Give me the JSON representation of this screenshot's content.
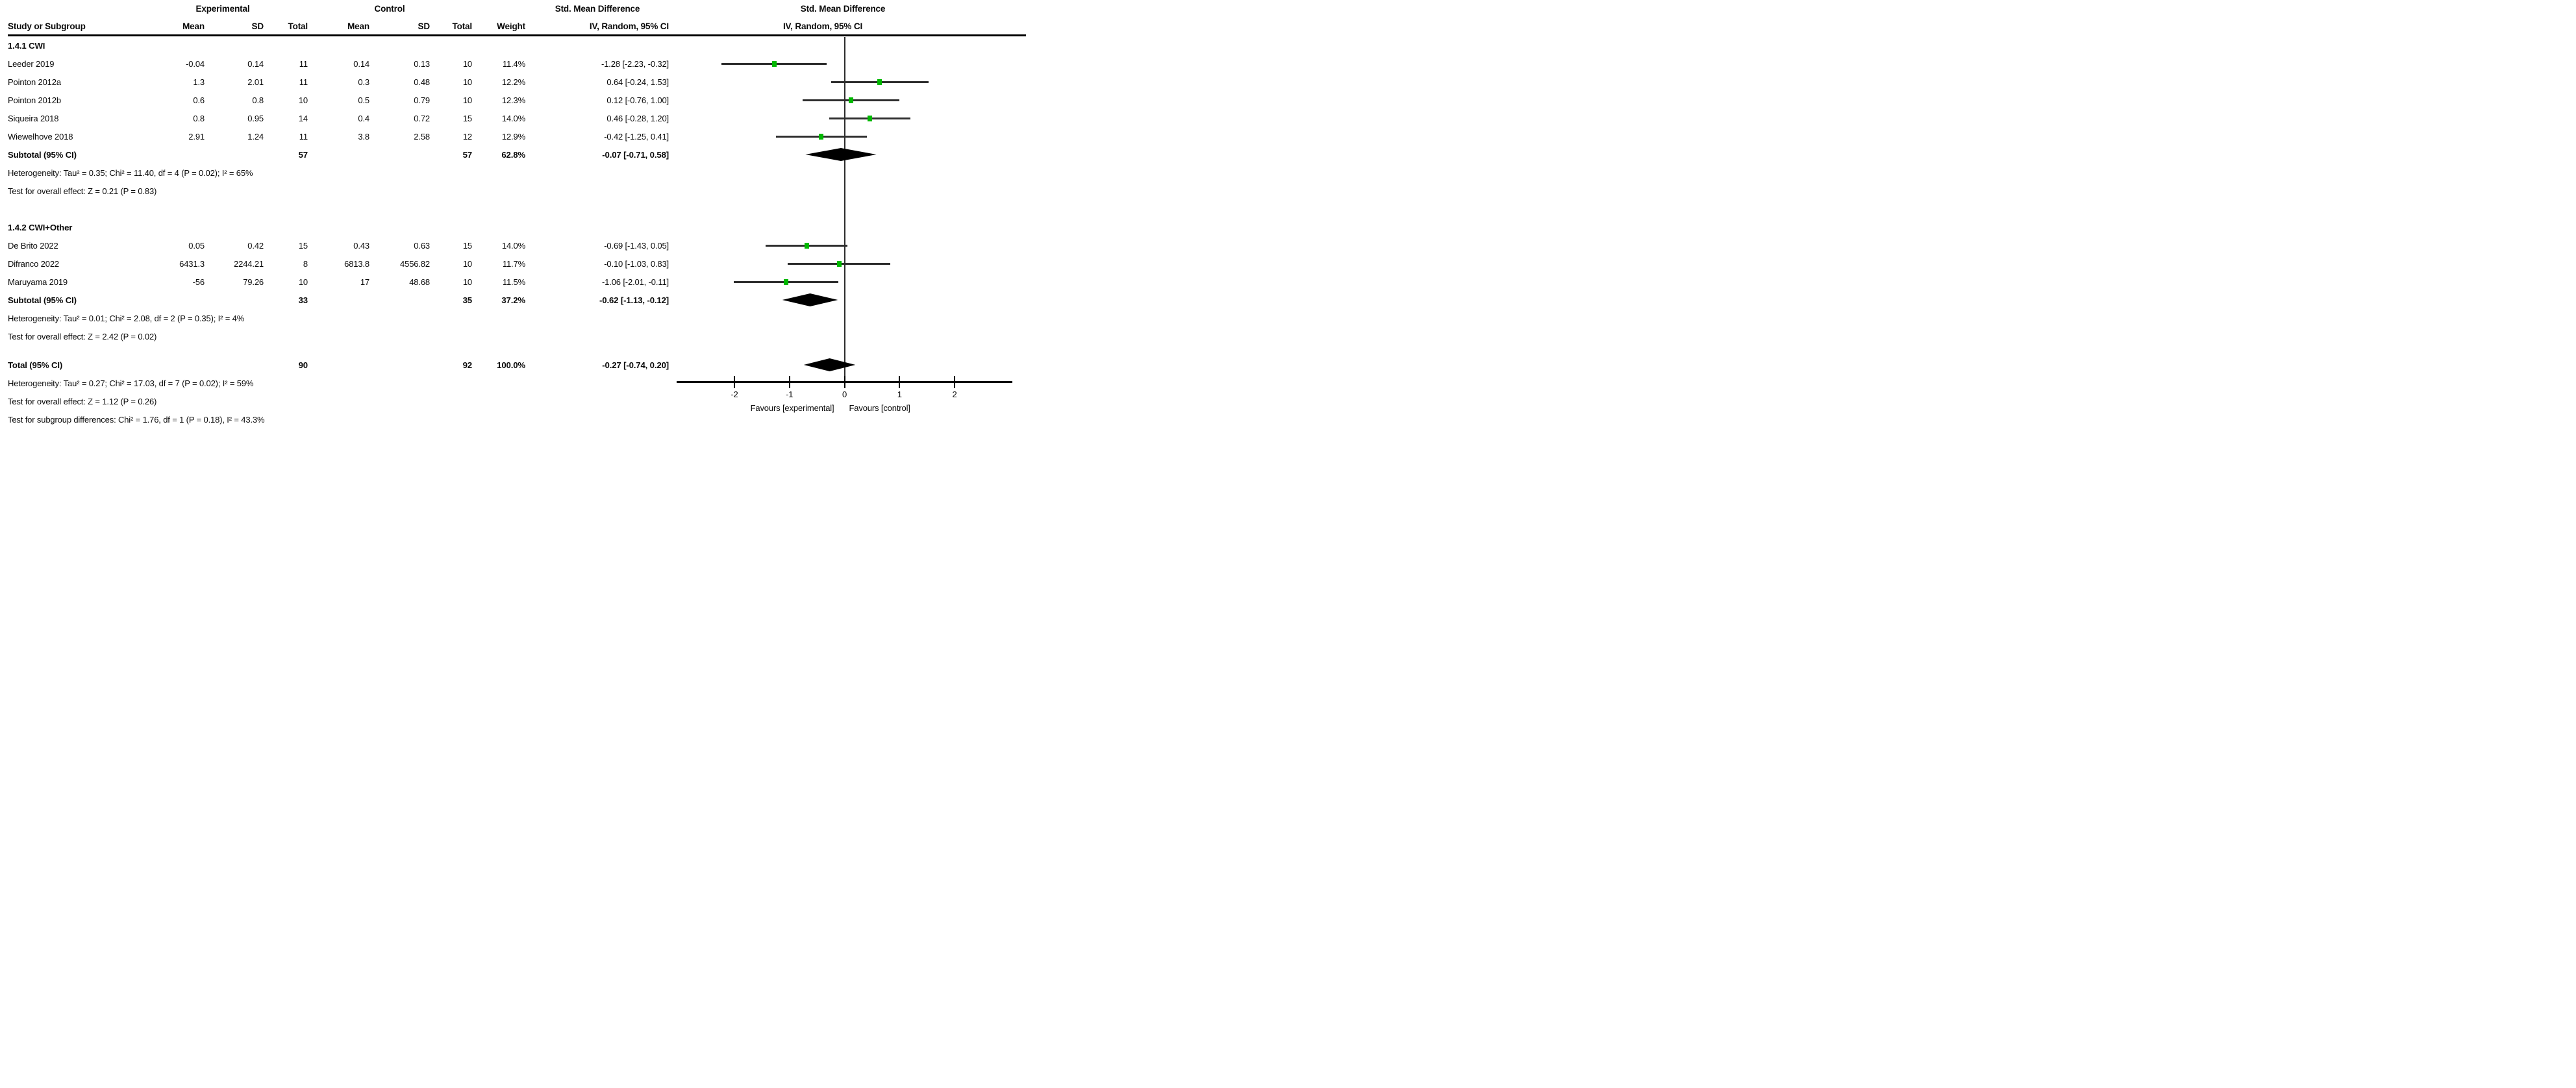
{
  "header": {
    "experimental": "Experimental",
    "control": "Control",
    "smd": "Std. Mean Difference",
    "iv": "IV, Random, 95% CI",
    "study_or_subgroup": "Study or Subgroup",
    "mean": "Mean",
    "sd": "SD",
    "total": "Total",
    "weight": "Weight"
  },
  "colors": {
    "square": "#00b800",
    "ci_line": "#2e2e2e",
    "diamond": "#000000",
    "axis": "#000000",
    "zero_line": "#2b2b2b"
  },
  "chart_data": {
    "type": "forest",
    "effect_measure": "Std. Mean Difference",
    "model": "IV, Random, 95% CI",
    "axis": {
      "min": -3.05,
      "max": 3.05,
      "ticks": [
        -2,
        -1,
        0,
        1,
        2
      ],
      "tick_labels": [
        "-2",
        "-1",
        "0",
        "1",
        "2"
      ]
    },
    "favours_left": "Favours [experimental]",
    "favours_right": "Favours [control]",
    "subgroups": [
      {
        "label": "1.4.1 CWI",
        "studies": [
          {
            "name": "Leeder 2019",
            "mean_e": "-0.04",
            "sd_e": "0.14",
            "n_e": "11",
            "mean_c": "0.14",
            "sd_c": "0.13",
            "n_c": "10",
            "weight": "11.4%",
            "ci_text": "-1.28 [-2.23, -0.32]",
            "est": -1.28,
            "lo": -2.23,
            "hi": -0.32
          },
          {
            "name": "Pointon 2012a",
            "mean_e": "1.3",
            "sd_e": "2.01",
            "n_e": "11",
            "mean_c": "0.3",
            "sd_c": "0.48",
            "n_c": "10",
            "weight": "12.2%",
            "ci_text": "0.64 [-0.24, 1.53]",
            "est": 0.64,
            "lo": -0.24,
            "hi": 1.53
          },
          {
            "name": "Pointon 2012b",
            "mean_e": "0.6",
            "sd_e": "0.8",
            "n_e": "10",
            "mean_c": "0.5",
            "sd_c": "0.79",
            "n_c": "10",
            "weight": "12.3%",
            "ci_text": "0.12 [-0.76, 1.00]",
            "est": 0.12,
            "lo": -0.76,
            "hi": 1.0
          },
          {
            "name": "Siqueira 2018",
            "mean_e": "0.8",
            "sd_e": "0.95",
            "n_e": "14",
            "mean_c": "0.4",
            "sd_c": "0.72",
            "n_c": "15",
            "weight": "14.0%",
            "ci_text": "0.46 [-0.28, 1.20]",
            "est": 0.46,
            "lo": -0.28,
            "hi": 1.2
          },
          {
            "name": "Wiewelhove 2018",
            "mean_e": "2.91",
            "sd_e": "1.24",
            "n_e": "11",
            "mean_c": "3.8",
            "sd_c": "2.58",
            "n_c": "12",
            "weight": "12.9%",
            "ci_text": "-0.42 [-1.25, 0.41]",
            "est": -0.42,
            "lo": -1.25,
            "hi": 0.41
          }
        ],
        "subtotal": {
          "label": "Subtotal (95% CI)",
          "n_e": "57",
          "n_c": "57",
          "weight": "62.8%",
          "ci_text": "-0.07 [-0.71, 0.58]",
          "est": -0.07,
          "lo": -0.71,
          "hi": 0.58
        },
        "heterogeneity": "Heterogeneity: Tau² = 0.35; Chi² = 11.40, df = 4 (P = 0.02); I² = 65%",
        "overall_effect": "Test for overall effect: Z = 0.21 (P = 0.83)"
      },
      {
        "label": "1.4.2 CWI+Other",
        "studies": [
          {
            "name": "De Brito 2022",
            "mean_e": "0.05",
            "sd_e": "0.42",
            "n_e": "15",
            "mean_c": "0.43",
            "sd_c": "0.63",
            "n_c": "15",
            "weight": "14.0%",
            "ci_text": "-0.69 [-1.43, 0.05]",
            "est": -0.69,
            "lo": -1.43,
            "hi": 0.05
          },
          {
            "name": "Difranco 2022",
            "mean_e": "6431.3",
            "sd_e": "2244.21",
            "n_e": "8",
            "mean_c": "6813.8",
            "sd_c": "4556.82",
            "n_c": "10",
            "weight": "11.7%",
            "ci_text": "-0.10 [-1.03, 0.83]",
            "est": -0.1,
            "lo": -1.03,
            "hi": 0.83
          },
          {
            "name": "Maruyama 2019",
            "mean_e": "-56",
            "sd_e": "79.26",
            "n_e": "10",
            "mean_c": "17",
            "sd_c": "48.68",
            "n_c": "10",
            "weight": "11.5%",
            "ci_text": "-1.06 [-2.01, -0.11]",
            "est": -1.06,
            "lo": -2.01,
            "hi": -0.11
          }
        ],
        "subtotal": {
          "label": "Subtotal (95% CI)",
          "n_e": "33",
          "n_c": "35",
          "weight": "37.2%",
          "ci_text": "-0.62 [-1.13, -0.12]",
          "est": -0.62,
          "lo": -1.13,
          "hi": -0.12
        },
        "heterogeneity": "Heterogeneity: Tau² = 0.01; Chi² = 2.08, df = 2 (P = 0.35); I² = 4%",
        "overall_effect": "Test for overall effect: Z = 2.42 (P = 0.02)"
      }
    ],
    "total": {
      "label": "Total (95% CI)",
      "n_e": "90",
      "n_c": "92",
      "weight": "100.0%",
      "ci_text": "-0.27 [-0.74, 0.20]",
      "est": -0.27,
      "lo": -0.74,
      "hi": 0.2
    },
    "total_heterogeneity": "Heterogeneity: Tau² = 0.27; Chi² = 17.03, df = 7 (P = 0.02); I² = 59%",
    "total_overall": "Test for overall effect: Z = 1.12 (P = 0.26)",
    "subgroup_diff": "Test for subgroup differences: Chi² = 1.76, df = 1 (P = 0.18), I² = 43.3%"
  }
}
